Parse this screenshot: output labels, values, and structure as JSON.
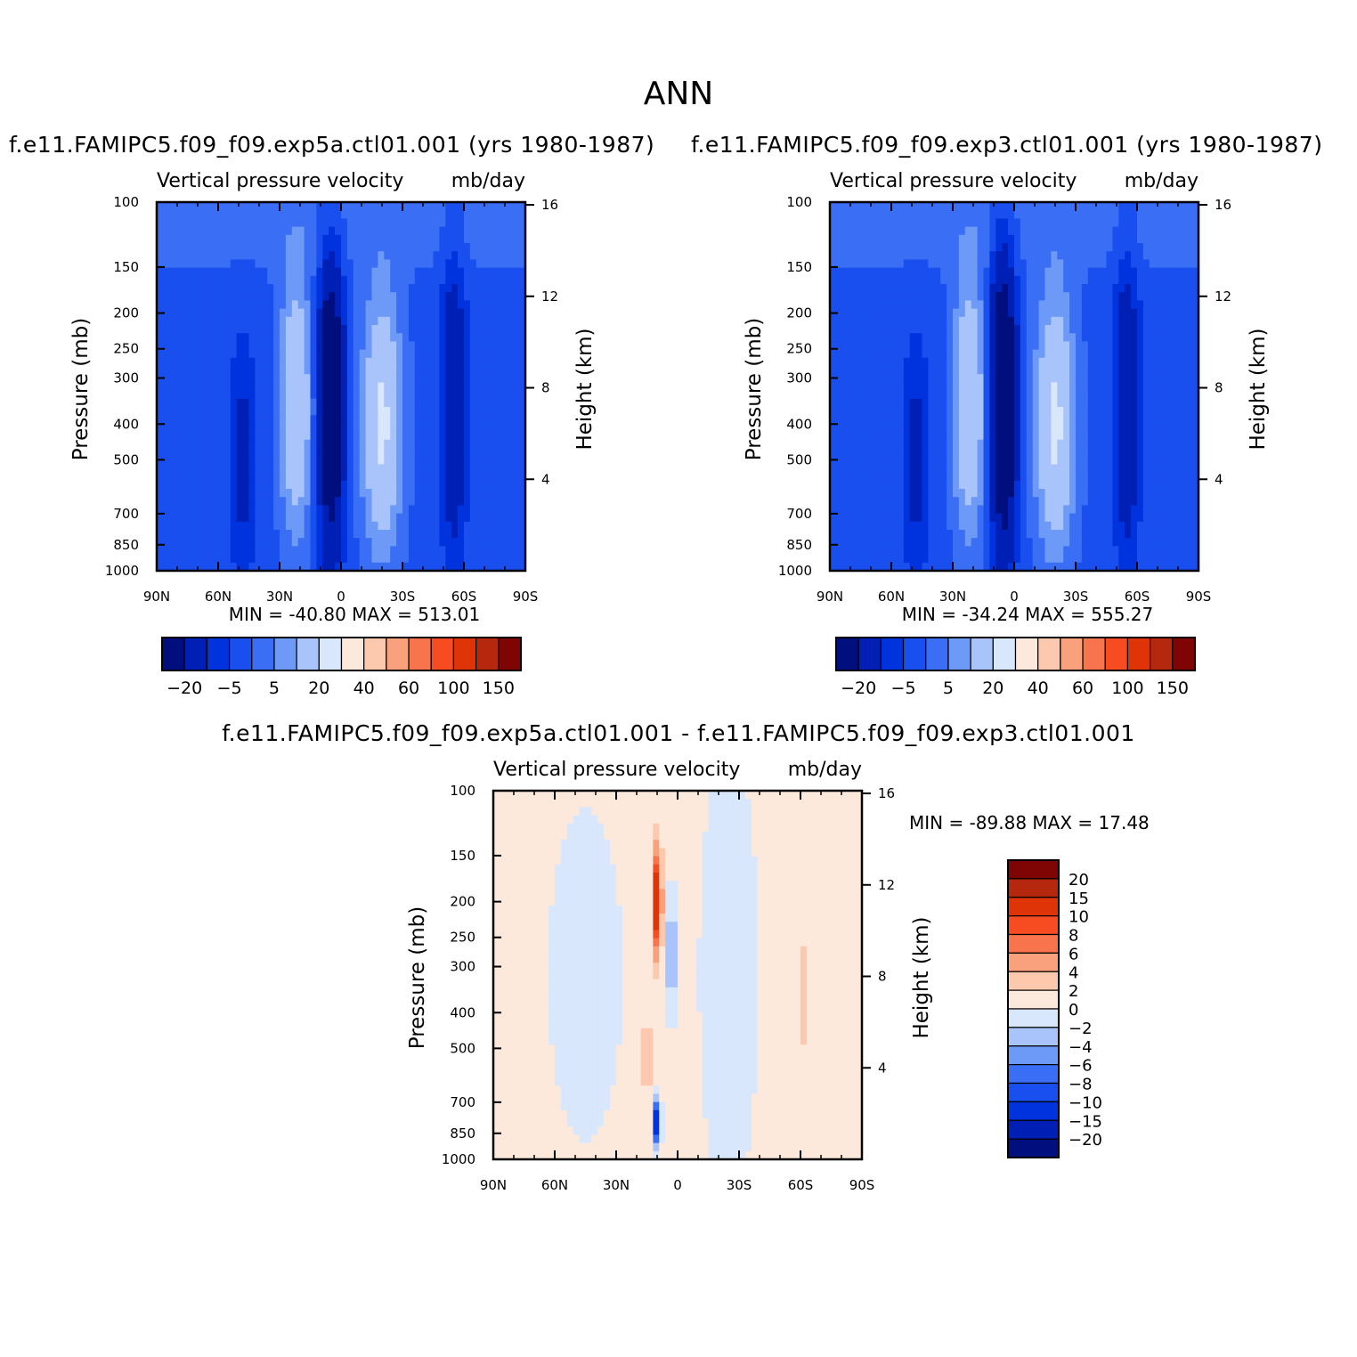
{
  "figure": {
    "title": "ANN",
    "colors": {
      "seq": [
        "#000f7d",
        "#0020b5",
        "#0033dd",
        "#1a4fef",
        "#3a6ef5",
        "#6d99f7",
        "#a9c4fb",
        "#d8e7fc",
        "#fde9dc",
        "#fcc8ae",
        "#f9a07c",
        "#f7744c",
        "#f74c21",
        "#de3407",
        "#b5280e",
        "#7f0404"
      ],
      "diff": [
        "#000f7d",
        "#0020b5",
        "#0033dd",
        "#1a4fef",
        "#3a6ef5",
        "#6d99f7",
        "#a9c4fb",
        "#d8e7fc",
        "#fde9dc",
        "#fcc8ae",
        "#f9a07c",
        "#f7744c",
        "#f74c21",
        "#de3407",
        "#b5280e",
        "#7f0404"
      ]
    }
  },
  "chart_data": [
    {
      "type": "heatmap",
      "title": "f.e11.FAMIPC5.f09_f09.exp5a.ctl01.001 (yrs 1980-1987)",
      "subtitle_left": "Vertical pressure velocity",
      "subtitle_right": "mb/day",
      "xlabel": "",
      "ylabel": "Pressure (mb)",
      "ylabel_right": "Height (km)",
      "x_ticks": [
        "90N",
        "60N",
        "30N",
        "0",
        "30S",
        "60S",
        "90S"
      ],
      "y_ticks": [
        100,
        150,
        200,
        250,
        300,
        400,
        500,
        700,
        850,
        1000
      ],
      "y_right_ticks": [
        16,
        12,
        8,
        4
      ],
      "stats": "MIN = -40.80   MAX = 513.01",
      "colorbar_labels": [
        "-20",
        "-5",
        "5",
        "20",
        "40",
        "60",
        "100",
        "150"
      ]
    },
    {
      "type": "heatmap",
      "title": "f.e11.FAMIPC5.f09_f09.exp3.ctl01.001 (yrs 1980-1987)",
      "subtitle_left": "Vertical pressure velocity",
      "subtitle_right": "mb/day",
      "xlabel": "",
      "ylabel": "Pressure (mb)",
      "ylabel_right": "Height (km)",
      "x_ticks": [
        "90N",
        "60N",
        "30N",
        "0",
        "30S",
        "60S",
        "90S"
      ],
      "y_ticks": [
        100,
        150,
        200,
        250,
        300,
        400,
        500,
        700,
        850,
        1000
      ],
      "y_right_ticks": [
        16,
        12,
        8,
        4
      ],
      "stats": "MIN = -34.24   MAX = 555.27",
      "colorbar_labels": [
        "-20",
        "-5",
        "5",
        "20",
        "40",
        "60",
        "100",
        "150"
      ]
    },
    {
      "type": "heatmap",
      "title": "f.e11.FAMIPC5.f09_f09.exp5a.ctl01.001 - f.e11.FAMIPC5.f09_f09.exp3.ctl01.001",
      "subtitle_left": "Vertical pressure velocity",
      "subtitle_right": "mb/day",
      "xlabel": "",
      "ylabel": "Pressure (mb)",
      "ylabel_right": "Height (km)",
      "x_ticks": [
        "90N",
        "60N",
        "30N",
        "0",
        "30S",
        "60S",
        "90S"
      ],
      "y_ticks": [
        100,
        150,
        200,
        250,
        300,
        400,
        500,
        700,
        850,
        1000
      ],
      "y_right_ticks": [
        16,
        12,
        8,
        4
      ],
      "stats": "MIN = -89.88   MAX =   17.48",
      "colorbar_labels": [
        "20",
        "15",
        "10",
        "8",
        "6",
        "4",
        "2",
        "0",
        "-2",
        "-4",
        "-6",
        "-8",
        "-10",
        "-15",
        "-20"
      ]
    }
  ]
}
